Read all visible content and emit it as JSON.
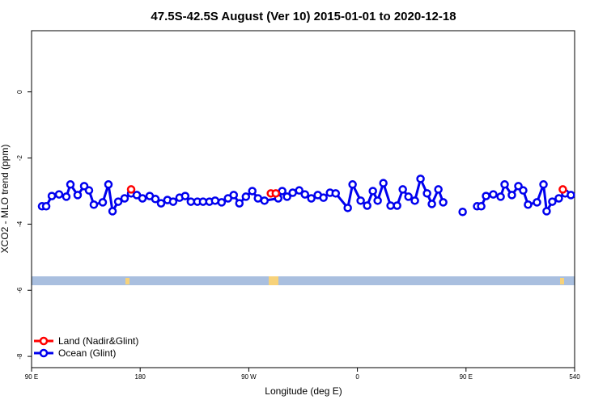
{
  "chart_data": {
    "type": "line",
    "title": "47.5S-42.5S August (Ver 10)   2015-01-01 to 2020-12-18",
    "x_label": "Longitude (deg E)",
    "y_label": "XCO2 - MLO trend (ppm)",
    "xlim": [
      90,
      540
    ],
    "xticks": [
      {
        "value": 90,
        "label": "90 E"
      },
      180,
      {
        "value": 270,
        "label": "90 W"
      },
      {
        "value": 360,
        "label": "0"
      },
      {
        "value": 450,
        "label": "90 E"
      },
      540
    ],
    "ylim": [
      -8.34,
      1.85
    ],
    "yticks": [
      0,
      -2,
      -4,
      -6,
      -8
    ],
    "legend": "bottom-left",
    "series": [
      {
        "name": "Land (Nadir&Glint)",
        "color": "#ff0000",
        "x": [
          172.5,
          288.3,
          292.4,
          530.2
        ],
        "values": [
          -2.95,
          -3.07,
          -3.07,
          -2.95
        ]
      },
      {
        "name": "Ocean (Glint)",
        "color": "#0000ee",
        "x": [
          98.7,
          102.1,
          106.8,
          112.8,
          118.8,
          122.2,
          128.2,
          133.6,
          137.6,
          141.6,
          149,
          153.7,
          157.1,
          161.8,
          167.1,
          172.5,
          177.2,
          181.9,
          187.9,
          192.6,
          197.3,
          202.6,
          207.3,
          212.6,
          217.3,
          222,
          227.4,
          232.1,
          237.4,
          242.1,
          247.5,
          252.8,
          257.5,
          262.2,
          267.6,
          272.9,
          277.6,
          283,
          294.4,
          297.7,
          301.7,
          306.4,
          311.8,
          316.5,
          321.8,
          327.2,
          331.9,
          337.3,
          342,
          352,
          356,
          362.7,
          368.1,
          372.8,
          376.8,
          381.5,
          387.5,
          392.9,
          397.6,
          402.3,
          407.6,
          412.3,
          417.7,
          421.7,
          427.1,
          431.1,
          null,
          447.2,
          null,
          459.2,
          462.6,
          466.6,
          472.6,
          478.7,
          482,
          488,
          493.4,
          497.4,
          501.4,
          508.8,
          514.2,
          516.8,
          521.5,
          526.9,
          532.2,
          536.9
        ],
        "values": [
          -3.46,
          -3.46,
          -3.15,
          -3.1,
          -3.17,
          -2.8,
          -3.12,
          -2.85,
          -2.98,
          -3.41,
          -3.34,
          -2.8,
          -3.61,
          -3.32,
          -3.22,
          -3.07,
          -3.12,
          -3.22,
          -3.15,
          -3.24,
          -3.37,
          -3.27,
          -3.32,
          -3.2,
          -3.15,
          -3.32,
          -3.32,
          -3.32,
          -3.32,
          -3.29,
          -3.34,
          -3.22,
          -3.12,
          -3.37,
          -3.17,
          -3.0,
          -3.22,
          -3.29,
          -3.22,
          -3.0,
          -3.17,
          -3.05,
          -2.98,
          -3.1,
          -3.22,
          -3.12,
          -3.2,
          -3.05,
          -3.07,
          -3.51,
          -2.8,
          -3.29,
          -3.44,
          -3.0,
          -3.29,
          -2.76,
          -3.44,
          -3.44,
          -2.95,
          -3.17,
          -3.29,
          -2.63,
          -3.07,
          -3.39,
          -2.95,
          -3.34,
          null,
          -3.63,
          null,
          -3.46,
          -3.46,
          -3.15,
          -3.1,
          -3.17,
          -2.8,
          -3.12,
          -2.85,
          -2.98,
          -3.41,
          -3.34,
          -2.8,
          -3.61,
          -3.32,
          -3.22,
          -3.07,
          -3.12
        ]
      }
    ]
  }
}
